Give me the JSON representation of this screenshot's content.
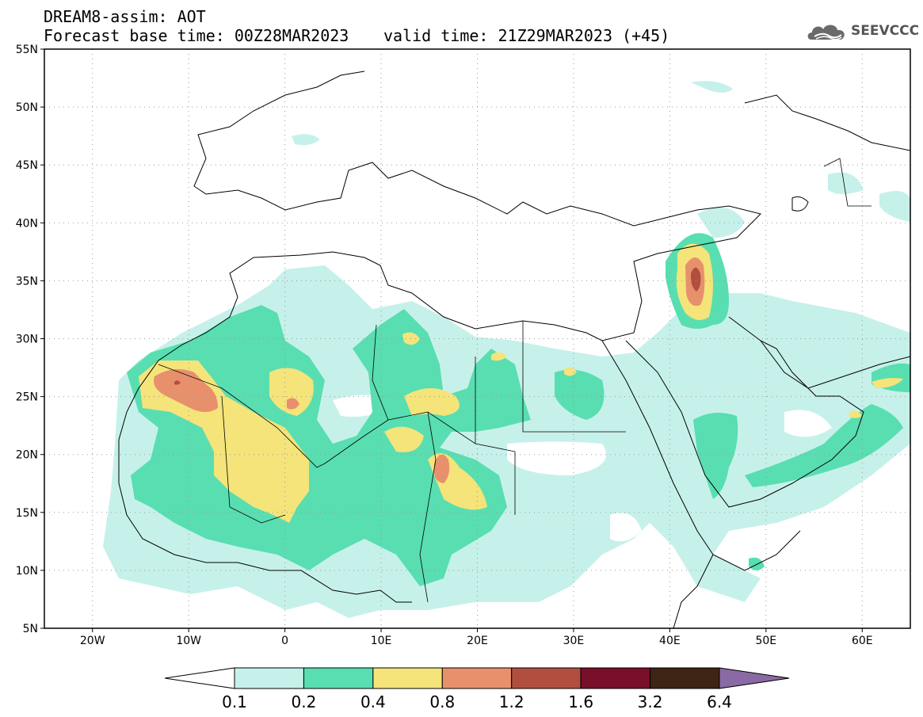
{
  "header": {
    "model_title": "DREAM8-assim: AOT",
    "base_time": "Forecast base time: 00Z28MAR2023",
    "valid_time": "valid time: 21Z29MAR2023 (+45)"
  },
  "logo": {
    "text": "SEEVCCC",
    "icon": "cloud-logo-icon"
  },
  "map": {
    "lon_range": [
      -25,
      65
    ],
    "lat_range": [
      5,
      55
    ],
    "lat_ticks": [
      {
        "value": 55,
        "label": "55N"
      },
      {
        "value": 50,
        "label": "50N"
      },
      {
        "value": 45,
        "label": "45N"
      },
      {
        "value": 40,
        "label": "40N"
      },
      {
        "value": 35,
        "label": "35N"
      },
      {
        "value": 30,
        "label": "30N"
      },
      {
        "value": 25,
        "label": "25N"
      },
      {
        "value": 20,
        "label": "20N"
      },
      {
        "value": 15,
        "label": "15N"
      },
      {
        "value": 10,
        "label": "10N"
      },
      {
        "value": 5,
        "label": "5N"
      }
    ],
    "lon_ticks": [
      {
        "value": -20,
        "label": "20W"
      },
      {
        "value": -10,
        "label": "10W"
      },
      {
        "value": 0,
        "label": "0"
      },
      {
        "value": 10,
        "label": "10E"
      },
      {
        "value": 20,
        "label": "20E"
      },
      {
        "value": 30,
        "label": "30E"
      },
      {
        "value": 40,
        "label": "40E"
      },
      {
        "value": 50,
        "label": "50E"
      },
      {
        "value": 60,
        "label": "60E"
      }
    ],
    "grid": "dotted"
  },
  "colorbar": {
    "levels": [
      "0.1",
      "0.2",
      "0.4",
      "0.8",
      "1.2",
      "1.6",
      "3.2",
      "6.4"
    ],
    "colors": [
      "#ffffff",
      "#c6f1ea",
      "#58deb1",
      "#f4e47a",
      "#e8906c",
      "#b04f40",
      "#7a0f2a",
      "#3e2414",
      "#8a6aa4"
    ]
  }
}
